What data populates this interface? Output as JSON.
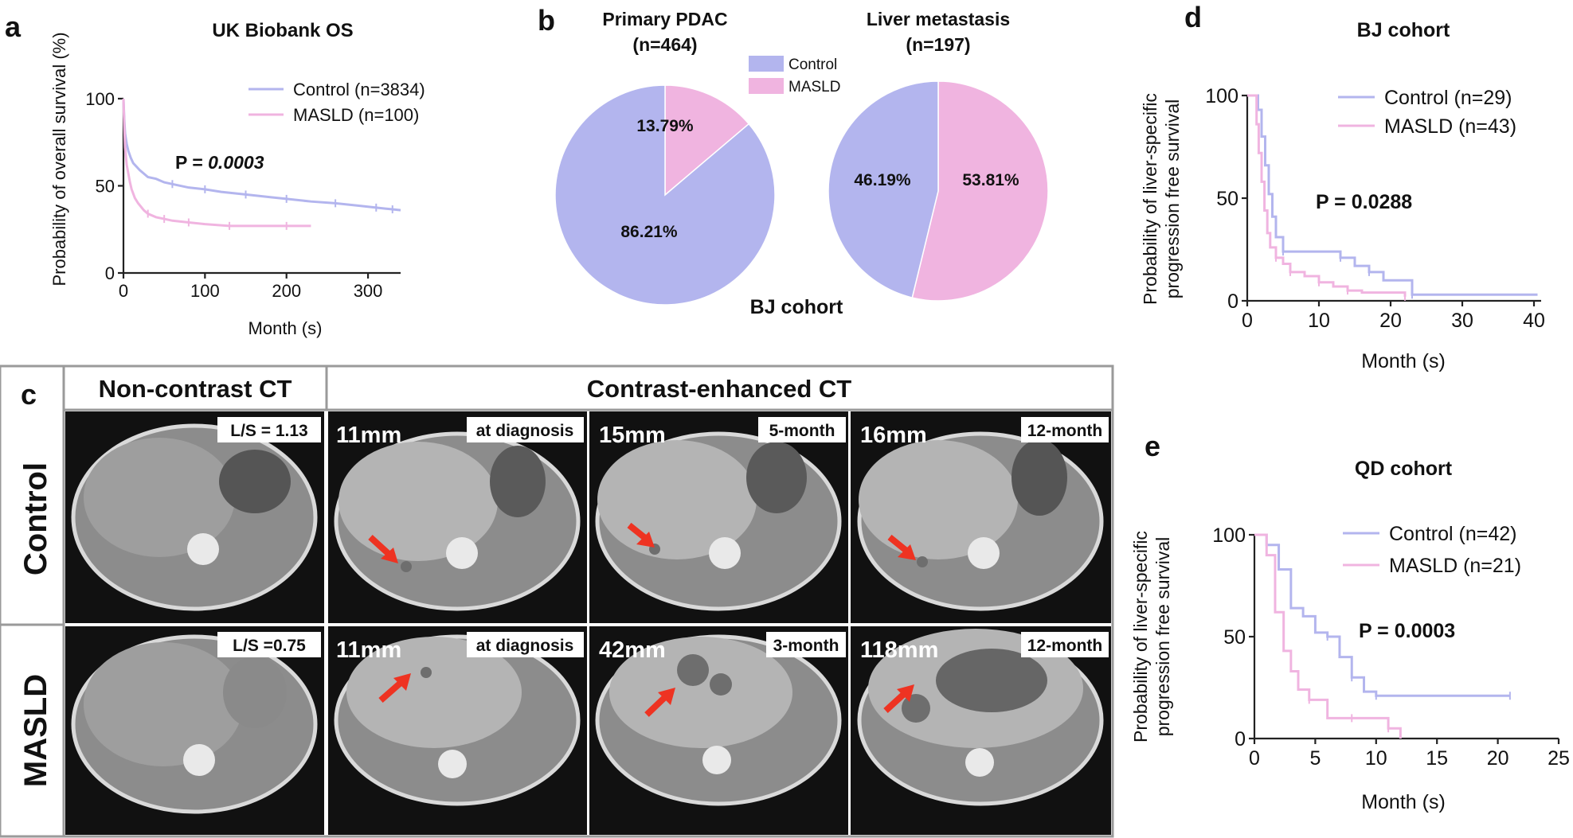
{
  "chart_data": [
    {
      "panel": "a",
      "type": "line",
      "title": "UK Biobank OS",
      "ylabel": "Probability of overall survival (%)",
      "xlabel": "Month (s)",
      "xlim": [
        0,
        340
      ],
      "ylim": [
        0,
        105
      ],
      "xticks": [
        0,
        100,
        200,
        300
      ],
      "yticks": [
        0,
        50,
        100
      ],
      "pvalue": "P = 0.0003",
      "pvalue_prefix": "P = ",
      "pvalue_number": "0.0003",
      "series": [
        {
          "name": "Control (n=3834)",
          "color": "#b3b5ee",
          "x": [
            0,
            1,
            2,
            4,
            6,
            9,
            12,
            16,
            20,
            25,
            30,
            40,
            50,
            60,
            80,
            100,
            120,
            150,
            180,
            200,
            230,
            260,
            290,
            310,
            320,
            330,
            340
          ],
          "y": [
            100,
            88,
            80,
            74,
            70,
            66,
            63,
            61,
            59,
            57,
            55,
            54,
            52,
            51,
            49,
            48,
            46.5,
            45,
            43.5,
            42.5,
            41,
            40,
            38.5,
            37.5,
            37,
            36.5,
            36
          ]
        },
        {
          "name": "MASLD (n=100)",
          "color": "#f0b4e0",
          "x": [
            0,
            1,
            2,
            4,
            6,
            8,
            10,
            14,
            18,
            25,
            30,
            40,
            50,
            60,
            80,
            100,
            130,
            160,
            200,
            230
          ],
          "y": [
            100,
            85,
            72,
            62,
            57,
            52,
            48,
            43,
            40,
            36,
            34,
            32,
            31,
            30,
            29,
            28,
            27,
            27,
            27,
            27
          ]
        }
      ]
    },
    {
      "panel": "b",
      "type": "pie",
      "subtitle": "BJ cohort",
      "legend": [
        "Control",
        "MASLD"
      ],
      "colors": {
        "Control": "#b3b5ee",
        "MASLD": "#f0b4e0"
      },
      "pies": [
        {
          "title_line1": "Primary PDAC",
          "title_line2": "(n=464)",
          "labels": [
            "Control",
            "MASLD"
          ],
          "values": [
            86.21,
            13.79
          ],
          "label_control": "86.21%",
          "label_masld": "13.79%"
        },
        {
          "title_line1": "Liver metastasis",
          "title_line2": "(n=197)",
          "labels": [
            "Control",
            "MASLD"
          ],
          "values": [
            46.19,
            53.81
          ],
          "label_control": "46.19%",
          "label_masld": "53.81%"
        }
      ]
    },
    {
      "panel": "d",
      "type": "line",
      "title": "BJ cohort",
      "ylabel_line1": "Probability of liver-specific",
      "ylabel_line2": "progression free survival",
      "xlabel": "Month (s)",
      "xlim": [
        0,
        41
      ],
      "ylim": [
        0,
        100
      ],
      "xticks": [
        0,
        10,
        20,
        30,
        40
      ],
      "yticks": [
        0,
        50,
        100
      ],
      "pvalue": "P = 0.0288",
      "series": [
        {
          "name": "Control (n=29)",
          "color": "#b3b5ee",
          "x": [
            0,
            1,
            1.5,
            2,
            2.5,
            3,
            3.5,
            4,
            5,
            7,
            13,
            15,
            17,
            19,
            23,
            40.5
          ],
          "y": [
            100,
            100,
            93,
            80,
            66,
            52,
            41,
            31,
            24,
            24,
            21,
            17,
            14,
            10,
            3,
            3
          ]
        },
        {
          "name": "MASLD (n=43)",
          "color": "#f0b4e0",
          "x": [
            0,
            1,
            1.3,
            1.6,
            2,
            2.4,
            2.8,
            3.2,
            4,
            5,
            6,
            8,
            10,
            12,
            14,
            16,
            22
          ],
          "y": [
            100,
            100,
            86,
            72,
            58,
            44,
            33,
            26,
            21,
            18,
            14,
            12,
            9,
            7,
            5,
            4,
            2
          ]
        }
      ]
    },
    {
      "panel": "e",
      "type": "line",
      "title": "QD cohort",
      "ylabel_line1": "Probability of liver-specific",
      "ylabel_line2": "progression free survival",
      "xlabel": "Month (s)",
      "xlim": [
        0,
        25
      ],
      "ylim": [
        0,
        100
      ],
      "xticks": [
        0,
        5,
        10,
        15,
        20,
        25
      ],
      "yticks": [
        0,
        50,
        100
      ],
      "pvalue": "P = 0.0003",
      "series": [
        {
          "name": "Control (n=42)",
          "color": "#b3b5ee",
          "x": [
            0,
            1,
            2,
            3,
            4,
            5,
            6,
            7,
            8,
            9,
            10,
            11,
            21
          ],
          "y": [
            100,
            95,
            83,
            64,
            60,
            52,
            50,
            40,
            30,
            23,
            21,
            21,
            21
          ]
        },
        {
          "name": "MASLD (n=21)",
          "color": "#f0b4e0",
          "x": [
            0,
            1,
            1.7,
            2.4,
            3,
            3.6,
            4.5,
            6,
            8,
            10,
            11,
            12
          ],
          "y": [
            100,
            90,
            62,
            43,
            33,
            24,
            19,
            10,
            10,
            10,
            5,
            0
          ]
        }
      ]
    }
  ],
  "panel_labels": {
    "a": "a",
    "b": "b",
    "c": "c",
    "d": "d",
    "e": "e"
  },
  "ct_panel": {
    "header_left": "Non-contrast CT",
    "header_right": "Contrast-enhanced CT",
    "row_labels": [
      "Control",
      "MASLD"
    ],
    "rows": [
      {
        "ls": "L/S = 1.13",
        "cells": [
          {
            "size": "11mm",
            "time": "at diagnosis"
          },
          {
            "size": "15mm",
            "time": "5-month"
          },
          {
            "size": "16mm",
            "time": "12-month"
          }
        ]
      },
      {
        "ls": "L/S =0.75",
        "cells": [
          {
            "size": "11mm",
            "time": "at diagnosis"
          },
          {
            "size": "42mm",
            "time": "3-month"
          },
          {
            "size": "118mm",
            "time": "12-month"
          }
        ]
      }
    ]
  }
}
